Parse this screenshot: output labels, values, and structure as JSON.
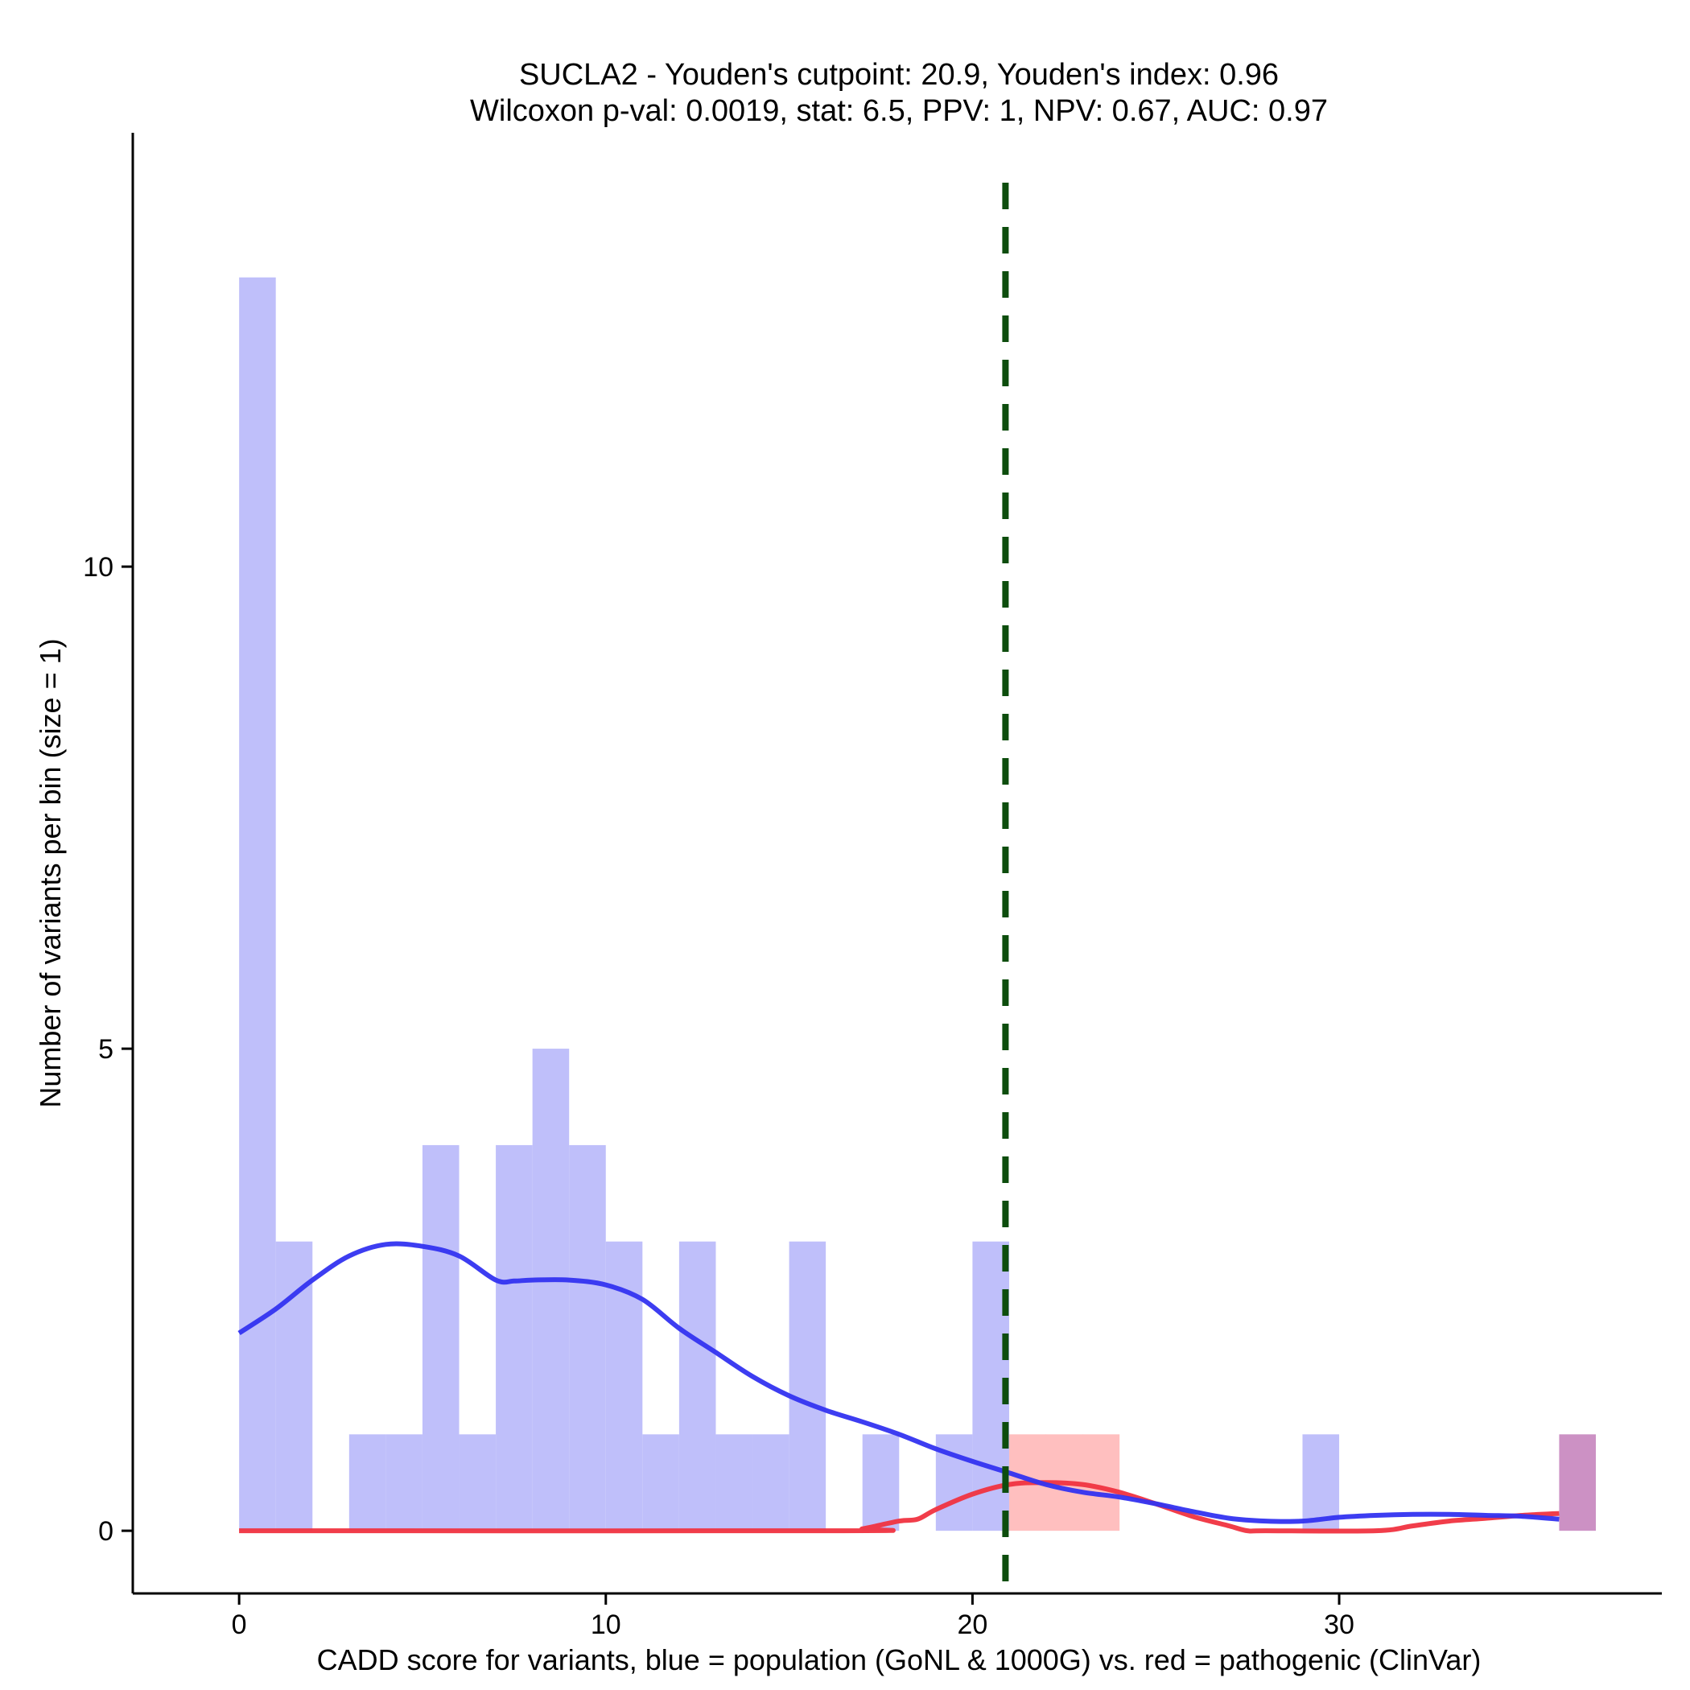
{
  "chart_data": {
    "type": "bar",
    "title_line1": "SUCLA2 - Youden's cutpoint: 20.9, Youden's index: 0.96",
    "title_line2": "Wilcoxon p-val: 0.0019, stat: 6.5, PPV: 1, NPV: 0.67, AUC: 0.97",
    "xlabel": "CADD score for variants, blue = population (GoNL & 1000G) vs. red = pathogenic (ClinVar)",
    "ylabel": "Number of variants per bin (size = 1)",
    "xlim": [
      -2.9,
      38.8
    ],
    "ylim": [
      -0.65,
      14.5
    ],
    "x_ticks": [
      0,
      10,
      20,
      30
    ],
    "x_tick_labels": [
      "0",
      "10",
      "20",
      "30"
    ],
    "y_ticks": [
      0,
      5,
      10
    ],
    "y_tick_labels": [
      "0",
      "5",
      "10"
    ],
    "cutpoint": 20.9,
    "colors": {
      "population_fill": "#bfbffa",
      "pathogenic_fill": "#ffbfbf",
      "overlap_fill": "#cc91c4",
      "population_line": "#3333f0",
      "pathogenic_line": "#f03340",
      "cutpoint_line": "#0d4d0d",
      "axis": "#000000"
    },
    "series": [
      {
        "name": "population",
        "bin_size": 1,
        "bins": [
          {
            "start": 0,
            "count": 13
          },
          {
            "start": 1,
            "count": 3
          },
          {
            "start": 3,
            "count": 1
          },
          {
            "start": 4,
            "count": 1
          },
          {
            "start": 5,
            "count": 4
          },
          {
            "start": 6,
            "count": 1
          },
          {
            "start": 7,
            "count": 4
          },
          {
            "start": 8,
            "count": 5
          },
          {
            "start": 9,
            "count": 4
          },
          {
            "start": 10,
            "count": 3
          },
          {
            "start": 11,
            "count": 1
          },
          {
            "start": 12,
            "count": 3
          },
          {
            "start": 13,
            "count": 1
          },
          {
            "start": 14,
            "count": 1
          },
          {
            "start": 15,
            "count": 3
          },
          {
            "start": 17,
            "count": 1
          },
          {
            "start": 19,
            "count": 1
          },
          {
            "start": 20,
            "count": 3
          },
          {
            "start": 29,
            "count": 1
          },
          {
            "start": 36,
            "count": 1
          }
        ]
      },
      {
        "name": "pathogenic",
        "bin_size": 1,
        "bins": [
          {
            "start": 21,
            "count": 1
          },
          {
            "start": 22,
            "count": 1
          },
          {
            "start": 23,
            "count": 1
          },
          {
            "start": 36,
            "count": 1
          }
        ]
      }
    ],
    "density_population": {
      "x": [
        0,
        1,
        2,
        3,
        4,
        5,
        6,
        7,
        7.5,
        8,
        9,
        10,
        11,
        12,
        13,
        14,
        15,
        16,
        17,
        18,
        19,
        20,
        21,
        22,
        23,
        24,
        25,
        26,
        27,
        28,
        29,
        30,
        31,
        32,
        33,
        34,
        35,
        36
      ],
      "y": [
        2.05,
        2.3,
        2.6,
        2.85,
        2.97,
        2.95,
        2.85,
        2.6,
        2.59,
        2.6,
        2.6,
        2.55,
        2.4,
        2.1,
        1.85,
        1.6,
        1.4,
        1.25,
        1.13,
        1.0,
        0.85,
        0.72,
        0.6,
        0.48,
        0.4,
        0.35,
        0.28,
        0.2,
        0.13,
        0.1,
        0.1,
        0.14,
        0.16,
        0.17,
        0.17,
        0.16,
        0.15,
        0.12
      ]
    },
    "density_pathogenic": {
      "x": [
        0,
        16.5,
        17,
        18,
        18.5,
        19,
        20,
        21,
        22,
        23,
        24,
        25,
        26,
        27,
        27.5,
        28,
        31,
        32,
        33,
        34,
        35,
        36
      ],
      "y": [
        0,
        0,
        0.02,
        0.1,
        0.12,
        0.22,
        0.38,
        0.48,
        0.5,
        0.48,
        0.4,
        0.28,
        0.15,
        0.05,
        0,
        0,
        0,
        0.05,
        0.1,
        0.13,
        0.16,
        0.18
      ]
    }
  }
}
